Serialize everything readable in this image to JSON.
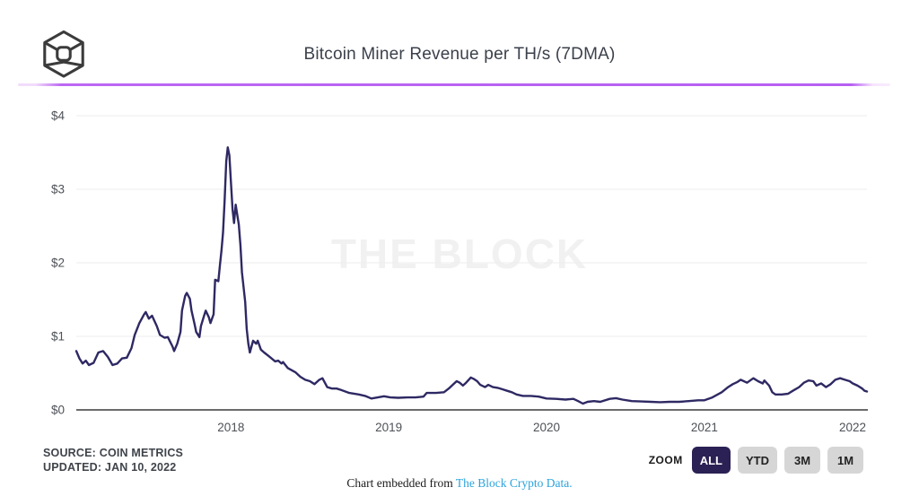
{
  "header": {
    "title": "Bitcoin Miner Revenue per TH/s (7DMA)"
  },
  "chart_data": {
    "type": "line",
    "title": "Bitcoin Miner Revenue per TH/s (7DMA)",
    "xlabel": "",
    "ylabel": "",
    "x_ticks": [
      2018,
      2019,
      2020,
      2021,
      2022
    ],
    "x_range": [
      2017.02,
      2022.03
    ],
    "y_ticks": [
      "$0",
      "$1",
      "$2",
      "$3",
      "$4"
    ],
    "y_tick_values": [
      0,
      1,
      2,
      3,
      4
    ],
    "ylim": [
      0,
      4
    ],
    "grid": "horizontal",
    "grid_color": "#ededed",
    "axis_color": "#6b6b6b",
    "watermark": "THE BLOCK",
    "series": [
      {
        "name": "Bitcoin Miner Revenue per TH/s (USD, 7DMA)",
        "color": "#2e2963",
        "points": [
          [
            2017.02,
            0.8
          ],
          [
            2017.04,
            0.7
          ],
          [
            2017.06,
            0.63
          ],
          [
            2017.08,
            0.67
          ],
          [
            2017.1,
            0.61
          ],
          [
            2017.13,
            0.64
          ],
          [
            2017.16,
            0.78
          ],
          [
            2017.19,
            0.8
          ],
          [
            2017.22,
            0.72
          ],
          [
            2017.25,
            0.61
          ],
          [
            2017.28,
            0.63
          ],
          [
            2017.31,
            0.7
          ],
          [
            2017.34,
            0.71
          ],
          [
            2017.37,
            0.84
          ],
          [
            2017.39,
            1.02
          ],
          [
            2017.42,
            1.18
          ],
          [
            2017.45,
            1.3
          ],
          [
            2017.46,
            1.33
          ],
          [
            2017.48,
            1.24
          ],
          [
            2017.5,
            1.28
          ],
          [
            2017.53,
            1.14
          ],
          [
            2017.55,
            1.02
          ],
          [
            2017.58,
            0.98
          ],
          [
            2017.6,
            0.99
          ],
          [
            2017.63,
            0.86
          ],
          [
            2017.64,
            0.8
          ],
          [
            2017.66,
            0.9
          ],
          [
            2017.68,
            1.06
          ],
          [
            2017.69,
            1.35
          ],
          [
            2017.71,
            1.55
          ],
          [
            2017.72,
            1.59
          ],
          [
            2017.74,
            1.51
          ],
          [
            2017.75,
            1.35
          ],
          [
            2017.77,
            1.16
          ],
          [
            2017.78,
            1.06
          ],
          [
            2017.8,
            0.99
          ],
          [
            2017.81,
            1.14
          ],
          [
            2017.83,
            1.28
          ],
          [
            2017.84,
            1.35
          ],
          [
            2017.86,
            1.26
          ],
          [
            2017.87,
            1.18
          ],
          [
            2017.89,
            1.3
          ],
          [
            2017.9,
            1.77
          ],
          [
            2017.92,
            1.75
          ],
          [
            2017.93,
            1.96
          ],
          [
            2017.94,
            2.17
          ],
          [
            2017.95,
            2.41
          ],
          [
            2017.96,
            2.85
          ],
          [
            2017.97,
            3.38
          ],
          [
            2017.98,
            3.57
          ],
          [
            2017.99,
            3.46
          ],
          [
            2018.0,
            3.1
          ],
          [
            2018.01,
            2.73
          ],
          [
            2018.02,
            2.54
          ],
          [
            2018.03,
            2.79
          ],
          [
            2018.04,
            2.65
          ],
          [
            2018.05,
            2.52
          ],
          [
            2018.06,
            2.24
          ],
          [
            2018.07,
            1.87
          ],
          [
            2018.09,
            1.47
          ],
          [
            2018.1,
            1.1
          ],
          [
            2018.11,
            0.9
          ],
          [
            2018.12,
            0.78
          ],
          [
            2018.13,
            0.86
          ],
          [
            2018.14,
            0.94
          ],
          [
            2018.16,
            0.9
          ],
          [
            2018.17,
            0.94
          ],
          [
            2018.19,
            0.82
          ],
          [
            2018.21,
            0.78
          ],
          [
            2018.24,
            0.73
          ],
          [
            2018.28,
            0.66
          ],
          [
            2018.3,
            0.67
          ],
          [
            2018.32,
            0.63
          ],
          [
            2018.33,
            0.65
          ],
          [
            2018.36,
            0.57
          ],
          [
            2018.41,
            0.51
          ],
          [
            2018.44,
            0.45
          ],
          [
            2018.47,
            0.41
          ],
          [
            2018.5,
            0.39
          ],
          [
            2018.53,
            0.35
          ],
          [
            2018.56,
            0.41
          ],
          [
            2018.58,
            0.43
          ],
          [
            2018.61,
            0.31
          ],
          [
            2018.64,
            0.29
          ],
          [
            2018.67,
            0.29
          ],
          [
            2018.7,
            0.27
          ],
          [
            2018.75,
            0.23
          ],
          [
            2018.81,
            0.21
          ],
          [
            2018.85,
            0.19
          ],
          [
            2018.89,
            0.155
          ],
          [
            2018.93,
            0.17
          ],
          [
            2018.97,
            0.185
          ],
          [
            2019.01,
            0.17
          ],
          [
            2019.06,
            0.165
          ],
          [
            2019.12,
            0.17
          ],
          [
            2019.17,
            0.17
          ],
          [
            2019.22,
            0.18
          ],
          [
            2019.24,
            0.23
          ],
          [
            2019.3,
            0.23
          ],
          [
            2019.35,
            0.24
          ],
          [
            2019.38,
            0.29
          ],
          [
            2019.41,
            0.35
          ],
          [
            2019.43,
            0.39
          ],
          [
            2019.45,
            0.37
          ],
          [
            2019.47,
            0.33
          ],
          [
            2019.49,
            0.37
          ],
          [
            2019.52,
            0.44
          ],
          [
            2019.54,
            0.42
          ],
          [
            2019.56,
            0.39
          ],
          [
            2019.58,
            0.34
          ],
          [
            2019.61,
            0.31
          ],
          [
            2019.63,
            0.34
          ],
          [
            2019.66,
            0.31
          ],
          [
            2019.69,
            0.3
          ],
          [
            2019.72,
            0.28
          ],
          [
            2019.75,
            0.26
          ],
          [
            2019.78,
            0.24
          ],
          [
            2019.81,
            0.21
          ],
          [
            2019.85,
            0.19
          ],
          [
            2019.9,
            0.19
          ],
          [
            2019.95,
            0.18
          ],
          [
            2020.0,
            0.155
          ],
          [
            2020.06,
            0.15
          ],
          [
            2020.12,
            0.14
          ],
          [
            2020.17,
            0.15
          ],
          [
            2020.2,
            0.12
          ],
          [
            2020.23,
            0.085
          ],
          [
            2020.26,
            0.11
          ],
          [
            2020.3,
            0.12
          ],
          [
            2020.34,
            0.11
          ],
          [
            2020.4,
            0.15
          ],
          [
            2020.44,
            0.16
          ],
          [
            2020.48,
            0.14
          ],
          [
            2020.54,
            0.12
          ],
          [
            2020.6,
            0.115
          ],
          [
            2020.66,
            0.11
          ],
          [
            2020.72,
            0.105
          ],
          [
            2020.78,
            0.11
          ],
          [
            2020.84,
            0.11
          ],
          [
            2020.9,
            0.12
          ],
          [
            2020.96,
            0.13
          ],
          [
            2021.0,
            0.13
          ],
          [
            2021.05,
            0.17
          ],
          [
            2021.11,
            0.24
          ],
          [
            2021.15,
            0.31
          ],
          [
            2021.18,
            0.35
          ],
          [
            2021.21,
            0.38
          ],
          [
            2021.23,
            0.41
          ],
          [
            2021.27,
            0.37
          ],
          [
            2021.31,
            0.43
          ],
          [
            2021.34,
            0.39
          ],
          [
            2021.37,
            0.36
          ],
          [
            2021.38,
            0.4
          ],
          [
            2021.41,
            0.33
          ],
          [
            2021.43,
            0.24
          ],
          [
            2021.45,
            0.21
          ],
          [
            2021.49,
            0.21
          ],
          [
            2021.53,
            0.22
          ],
          [
            2021.56,
            0.26
          ],
          [
            2021.6,
            0.31
          ],
          [
            2021.63,
            0.37
          ],
          [
            2021.66,
            0.4
          ],
          [
            2021.69,
            0.39
          ],
          [
            2021.71,
            0.33
          ],
          [
            2021.74,
            0.36
          ],
          [
            2021.77,
            0.31
          ],
          [
            2021.8,
            0.35
          ],
          [
            2021.83,
            0.41
          ],
          [
            2021.86,
            0.43
          ],
          [
            2021.89,
            0.41
          ],
          [
            2021.92,
            0.39
          ],
          [
            2021.94,
            0.36
          ],
          [
            2021.97,
            0.33
          ],
          [
            2022.0,
            0.29
          ],
          [
            2022.015,
            0.26
          ],
          [
            2022.03,
            0.25
          ]
        ]
      }
    ],
    "legend": []
  },
  "source_block": {
    "source": "SOURCE: COIN METRICS",
    "updated": "UPDATED: JAN 10, 2022"
  },
  "zoom_controls": {
    "label": "ZOOM",
    "options": [
      {
        "label": "ALL",
        "active": true
      },
      {
        "label": "YTD",
        "active": false
      },
      {
        "label": "3M",
        "active": false
      },
      {
        "label": "1M",
        "active": false
      }
    ]
  },
  "embed_note": {
    "prefix": "Chart embedded from ",
    "link_text": "The Block Crypto Data."
  },
  "colors": {
    "accent_divider": "#b75ff2",
    "line": "#2e2963",
    "active_button_bg": "#2b2154",
    "link_blue": "#2ba3dc",
    "watermark": "#f1f1f2"
  }
}
